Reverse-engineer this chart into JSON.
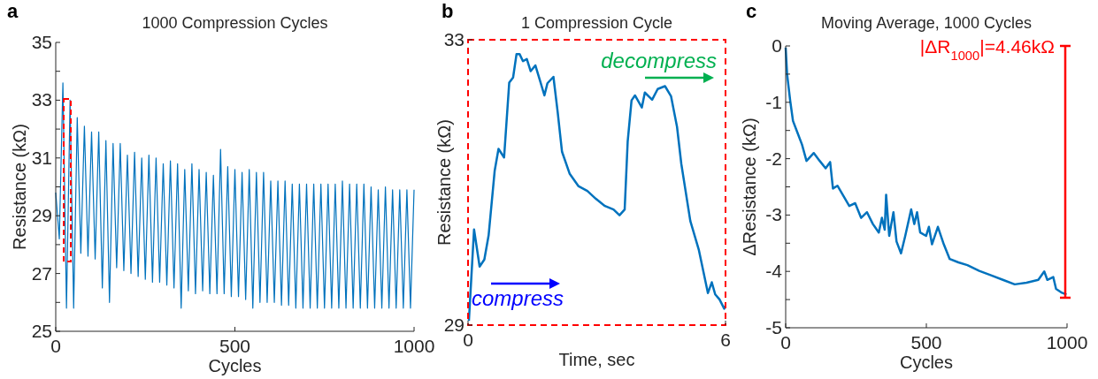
{
  "chart_data": [
    {
      "type": "line",
      "title": "1000 Compression Cycles",
      "xlabel": "Cycles",
      "ylabel": "Resistance (kΩ)",
      "annotations": [
        "a"
      ],
      "xlim": [
        0,
        1000
      ],
      "xticks": [
        0,
        500,
        1000
      ],
      "ylim": [
        25,
        35
      ],
      "yticks": [
        25,
        {
          "value": 26,
          "label": null
        },
        27,
        {
          "value": 28,
          "label": null
        },
        29,
        {
          "value": 30,
          "label": null
        },
        31,
        {
          "value": 32,
          "label": null
        },
        33,
        {
          "value": 34,
          "label": null
        },
        35
      ],
      "series": [
        {
          "color": "#0072bd",
          "line_style": "solid",
          "x": [
            0,
            10,
            20,
            30,
            40,
            50,
            60,
            70,
            80,
            90,
            100,
            110,
            120,
            130,
            140,
            150,
            160,
            170,
            180,
            190,
            200,
            210,
            220,
            230,
            240,
            250,
            260,
            270,
            280,
            290,
            300,
            310,
            320,
            330,
            340,
            350,
            360,
            370,
            380,
            390,
            400,
            410,
            420,
            430,
            440,
            450,
            460,
            470,
            480,
            490,
            500,
            510,
            520,
            530,
            540,
            550,
            560,
            570,
            580,
            590,
            600,
            610,
            620,
            630,
            640,
            650,
            660,
            670,
            680,
            690,
            700,
            710,
            720,
            730,
            740,
            750,
            760,
            770,
            780,
            790,
            800,
            810,
            820,
            830,
            840,
            850,
            860,
            870,
            880,
            890,
            900,
            910,
            920,
            930,
            940,
            950,
            960,
            970,
            980,
            990,
            1000
          ],
          "values": [
            29.8,
            28.2,
            33.6,
            25.8,
            33.0,
            25.8,
            32.4,
            27.7,
            32.1,
            27.6,
            31.9,
            27.5,
            31.9,
            26.5,
            31.6,
            26.0,
            31.5,
            27.2,
            31.5,
            27.1,
            31.1,
            27.0,
            31.2,
            26.9,
            31.0,
            26.8,
            31.1,
            26.7,
            31.0,
            26.7,
            30.8,
            26.6,
            30.9,
            26.5,
            30.8,
            25.8,
            30.6,
            26.4,
            30.8,
            26.3,
            30.6,
            26.4,
            30.5,
            26.3,
            30.4,
            26.3,
            31.3,
            26.3,
            30.7,
            26.2,
            30.6,
            26.2,
            30.5,
            26.1,
            30.6,
            25.8,
            30.5,
            26.0,
            30.5,
            26.0,
            30.2,
            26.0,
            30.2,
            25.9,
            30.2,
            25.9,
            30.1,
            25.8,
            30.1,
            25.8,
            30.1,
            25.8,
            30.1,
            25.8,
            30.1,
            25.8,
            30.1,
            25.8,
            30.1,
            25.8,
            30.2,
            25.8,
            30.1,
            25.8,
            30.1,
            25.8,
            30.1,
            25.8,
            30.0,
            25.8,
            29.9,
            25.8,
            30.0,
            25.8,
            29.9,
            25.8,
            29.9,
            25.8,
            29.9,
            25.8,
            29.9
          ]
        }
      ]
    },
    {
      "type": "line",
      "title": "1 Compression Cycle",
      "xlabel": "Time, sec",
      "ylabel": "Resistance (kΩ)",
      "annotations": [
        "b",
        "compress",
        "decompress"
      ],
      "xlim": [
        0,
        6
      ],
      "xticks": [
        0,
        6
      ],
      "ylim": [
        29,
        33
      ],
      "yticks": [
        29,
        33
      ],
      "series": [
        {
          "color": "#0072bd",
          "x": [
            0.02,
            0.14,
            0.27,
            0.38,
            0.48,
            0.62,
            0.71,
            0.84,
            0.96,
            1.05,
            1.13,
            1.2,
            1.28,
            1.37,
            1.46,
            1.57,
            1.67,
            1.78,
            1.85,
            1.99,
            2.09,
            2.19,
            2.37,
            2.57,
            2.78,
            2.98,
            3.19,
            3.39,
            3.53,
            3.65,
            3.72,
            3.81,
            3.89,
            4.05,
            4.12,
            4.29,
            4.42,
            4.59,
            4.73,
            4.87,
            4.97,
            5.18,
            5.38,
            5.59,
            5.68,
            5.76,
            5.86,
            5.97,
            6.0
          ],
          "values": [
            29.06,
            30.34,
            29.82,
            29.92,
            30.26,
            31.16,
            31.47,
            31.35,
            32.4,
            32.47,
            32.8,
            32.8,
            32.7,
            32.73,
            32.56,
            32.64,
            32.44,
            32.22,
            32.39,
            32.48,
            31.98,
            31.43,
            31.12,
            30.95,
            30.88,
            30.77,
            30.67,
            30.62,
            30.54,
            30.62,
            31.57,
            32.15,
            32.22,
            32.05,
            32.26,
            32.16,
            32.31,
            32.35,
            32.21,
            31.78,
            31.26,
            30.46,
            30.05,
            29.45,
            29.6,
            29.43,
            29.36,
            29.23,
            29.27
          ]
        }
      ]
    },
    {
      "type": "line",
      "title": "Moving Average, 1000 Cycles",
      "xlabel": "Cycles",
      "ylabel": "ΔResistance (kΩ)",
      "annotations": [
        "c",
        "|ΔR$_{1000}$|=4.46kΩ"
      ],
      "xlim": [
        0,
        1000
      ],
      "xticks": [
        0,
        500,
        1000
      ],
      "ylim": [
        -5,
        0
      ],
      "yticks": [
        -5,
        {
          "value": -4.5,
          "label": null
        },
        -4,
        {
          "value": -3.5,
          "label": null
        },
        -3,
        {
          "value": -2.5,
          "label": null
        },
        -2,
        {
          "value": -1.5,
          "label": null
        },
        -1,
        {
          "value": -0.5,
          "label": null
        },
        0
      ],
      "series": [
        {
          "color": "#0072bd",
          "x": [
            0,
            5,
            16,
            26,
            42,
            58,
            74,
            100,
            121,
            142,
            158,
            168,
            184,
            205,
            226,
            247,
            268,
            289,
            310,
            331,
            342,
            352,
            357,
            368,
            383,
            394,
            410,
            425,
            446,
            457,
            467,
            478,
            499,
            509,
            520,
            541,
            562,
            583,
            614,
            646,
            688,
            730,
            772,
            814,
            856,
            898,
            919,
            930,
            951,
            961,
            982,
            998
          ],
          "values": [
            -0.03,
            -0.5,
            -0.97,
            -1.33,
            -1.54,
            -1.75,
            -2.04,
            -1.9,
            -2.04,
            -2.17,
            -2.06,
            -2.53,
            -2.48,
            -2.66,
            -2.84,
            -2.79,
            -3.05,
            -2.95,
            -3.16,
            -3.31,
            -3.05,
            -3.26,
            -2.64,
            -3.37,
            -2.95,
            -3.47,
            -3.68,
            -3.37,
            -2.9,
            -3.16,
            -2.95,
            -3.31,
            -3.37,
            -3.21,
            -3.52,
            -3.21,
            -3.52,
            -3.78,
            -3.84,
            -3.89,
            -3.99,
            -4.07,
            -4.15,
            -4.23,
            -4.2,
            -4.15,
            -4.0,
            -4.15,
            -4.1,
            -4.31,
            -4.38,
            -4.41
          ]
        }
      ]
    }
  ]
}
